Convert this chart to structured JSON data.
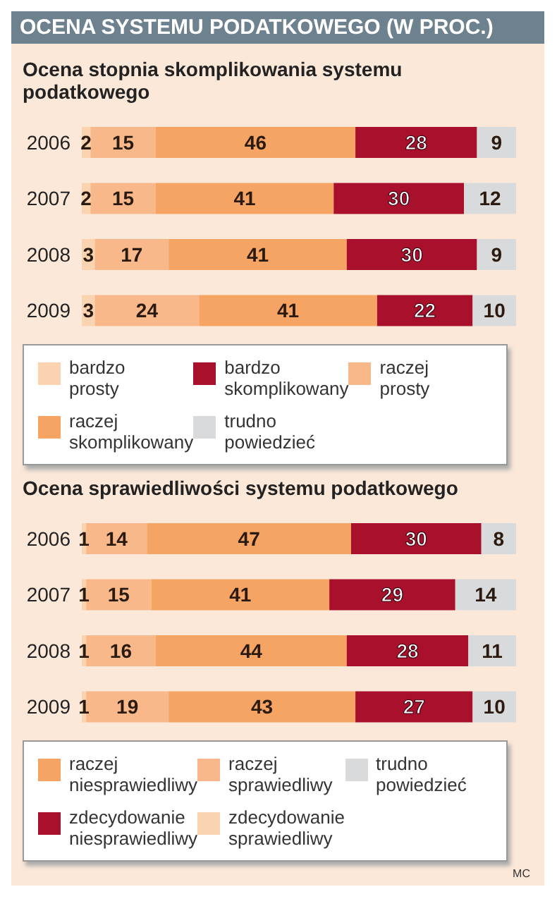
{
  "chart_data": [
    {
      "type": "bar",
      "title": "OCENA SYSTEMU PODATKOWEGO (W PROC.)",
      "subtitle": "Ocena stopnia skomplikowania systemu podatkowego",
      "orientation": "horizontal",
      "stacked": true,
      "data_labels": true,
      "legend": "bottom",
      "categories": [
        "2006",
        "2007",
        "2008",
        "2009"
      ],
      "series": [
        {
          "name": "bardzo prosty",
          "color": "#fad3b0",
          "values": [
            2,
            2,
            3,
            3
          ]
        },
        {
          "name": "raczej prosty",
          "color": "#f8b889",
          "values": [
            15,
            15,
            17,
            24
          ]
        },
        {
          "name": "raczej skomplikowany",
          "color": "#f6a463",
          "values": [
            46,
            41,
            41,
            41
          ]
        },
        {
          "name": "bardzo skomplikowany",
          "color": "#a8102c",
          "values": [
            28,
            30,
            30,
            22
          ]
        },
        {
          "name": "trudno powiedzieć",
          "color": "#d9dadc",
          "values": [
            9,
            12,
            9,
            10
          ]
        }
      ]
    },
    {
      "type": "bar",
      "title": "Ocena sprawiedliwości systemu podatkowego",
      "orientation": "horizontal",
      "stacked": true,
      "data_labels": true,
      "legend": "bottom",
      "annotations": [
        "MC"
      ],
      "categories": [
        "2006",
        "2007",
        "2008",
        "2009"
      ],
      "series": [
        {
          "name": "zdecydowanie sprawiedliwy",
          "color": "#fad3b0",
          "values": [
            1,
            1,
            1,
            1
          ]
        },
        {
          "name": "raczej sprawiedliwy",
          "color": "#f8b889",
          "values": [
            14,
            15,
            16,
            19
          ]
        },
        {
          "name": "raczej niesprawiedliwy",
          "color": "#f6a463",
          "values": [
            47,
            41,
            44,
            43
          ]
        },
        {
          "name": "zdecydowanie niesprawiedliwy",
          "color": "#a8102c",
          "values": [
            30,
            29,
            28,
            27
          ]
        },
        {
          "name": "trudno powiedzieć",
          "color": "#d9dadc",
          "values": [
            8,
            14,
            11,
            10
          ]
        }
      ]
    }
  ]
}
